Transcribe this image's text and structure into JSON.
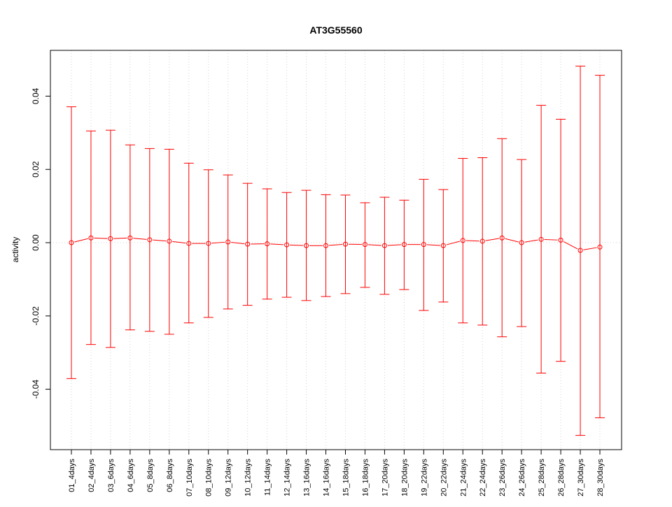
{
  "chart_data": {
    "type": "line",
    "title": "AT3G55560",
    "xlabel": "",
    "ylabel": "activity",
    "ylim": [
      -0.0565,
      0.0525
    ],
    "yticks": [
      -0.04,
      -0.02,
      0.0,
      0.02,
      0.04
    ],
    "ytick_labels": [
      "-0.04",
      "-0.02",
      "0.00",
      "0.02",
      "0.04"
    ],
    "grid": "dotted vertical at each category, dotted horizontal at 0",
    "categories": [
      "01_4days",
      "02_4days",
      "03_6days",
      "04_6days",
      "05_8days",
      "06_8days",
      "07_10days",
      "08_10days",
      "09_12days",
      "10_12days",
      "11_14days",
      "12_14days",
      "13_16days",
      "14_16days",
      "15_18days",
      "16_18days",
      "17_20days",
      "18_20days",
      "19_22days",
      "20_22days",
      "21_24days",
      "22_24days",
      "23_26days",
      "24_26days",
      "25_28days",
      "26_28days",
      "27_30days",
      "28_30days"
    ],
    "series": [
      {
        "name": "activity",
        "color": "#ff0000",
        "values": [
          0.0,
          0.0013,
          0.0011,
          0.0013,
          0.0008,
          0.0004,
          -0.0002,
          -0.0002,
          0.0002,
          -0.0004,
          -0.0003,
          -0.0006,
          -0.0008,
          -0.0008,
          -0.0004,
          -0.0005,
          -0.0008,
          -0.0005,
          -0.0005,
          -0.0008,
          0.0006,
          0.0004,
          0.0013,
          0.0,
          0.0009,
          0.0007,
          -0.0021,
          -0.0012
        ],
        "upper": [
          0.0371,
          0.0305,
          0.0307,
          0.0267,
          0.0257,
          0.0255,
          0.0217,
          0.0199,
          0.0185,
          0.0162,
          0.0147,
          0.0137,
          0.0143,
          0.0131,
          0.013,
          0.0109,
          0.0124,
          0.0116,
          0.0173,
          0.0145,
          0.023,
          0.0232,
          0.0284,
          0.0227,
          0.0375,
          0.0337,
          0.0482,
          0.0457
        ],
        "lower": [
          -0.0371,
          -0.0278,
          -0.0286,
          -0.0238,
          -0.0242,
          -0.025,
          -0.0219,
          -0.0204,
          -0.0181,
          -0.0171,
          -0.0154,
          -0.0149,
          -0.0158,
          -0.0147,
          -0.0139,
          -0.0122,
          -0.0141,
          -0.0128,
          -0.0185,
          -0.0162,
          -0.0219,
          -0.0225,
          -0.0257,
          -0.0229,
          -0.0356,
          -0.0324,
          -0.0526,
          -0.0478
        ]
      }
    ]
  }
}
